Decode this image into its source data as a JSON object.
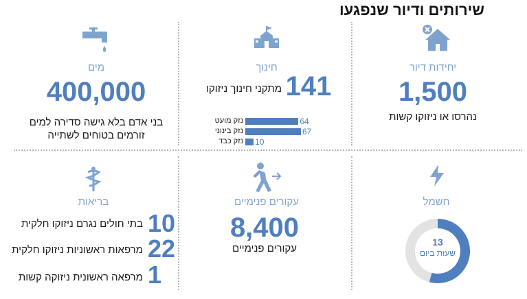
{
  "title": "שירותים ודיור שנפגעו",
  "housing": {
    "label": "יחידות דיור",
    "value": "1,500",
    "caption": "נהרסו או ניזוקו קשות"
  },
  "education": {
    "label": "חינוך",
    "value": "141",
    "caption": "מתקני חינוך ניזוקו",
    "bars": [
      {
        "label": "נזק מועט",
        "value": 64
      },
      {
        "label": "נזק בינוני",
        "value": 67
      },
      {
        "label": "נזק כבד",
        "value": 10
      }
    ]
  },
  "water": {
    "label": "מים",
    "value": "400,000",
    "caption_line1": "בני אדם בלא גישה סדירה למים",
    "caption_line2": "זורמים בטוחים לשתייה"
  },
  "electricity": {
    "label": "חשמל",
    "donut_value": "13",
    "donut_unit": "שעות ביום",
    "hours": 13,
    "total_hours": 24
  },
  "displaced": {
    "label": "עקורים פנימיים",
    "value": "8,400",
    "caption": "עקורים פנימיים"
  },
  "health": {
    "label": "בריאות",
    "rows": [
      {
        "value": "10",
        "text": "בתי חולים נגרם ניזוקו חלקית"
      },
      {
        "value": "22",
        "text": "מרפאות ראשוניות ניזוקו חלקית"
      },
      {
        "value": "1",
        "text": "מרפאה ראשונית ניזוקה קשות"
      }
    ]
  },
  "colors": {
    "accent": "#4f7fbf",
    "light_accent": "#7fa3cf",
    "track": "#e3e3e3"
  }
}
